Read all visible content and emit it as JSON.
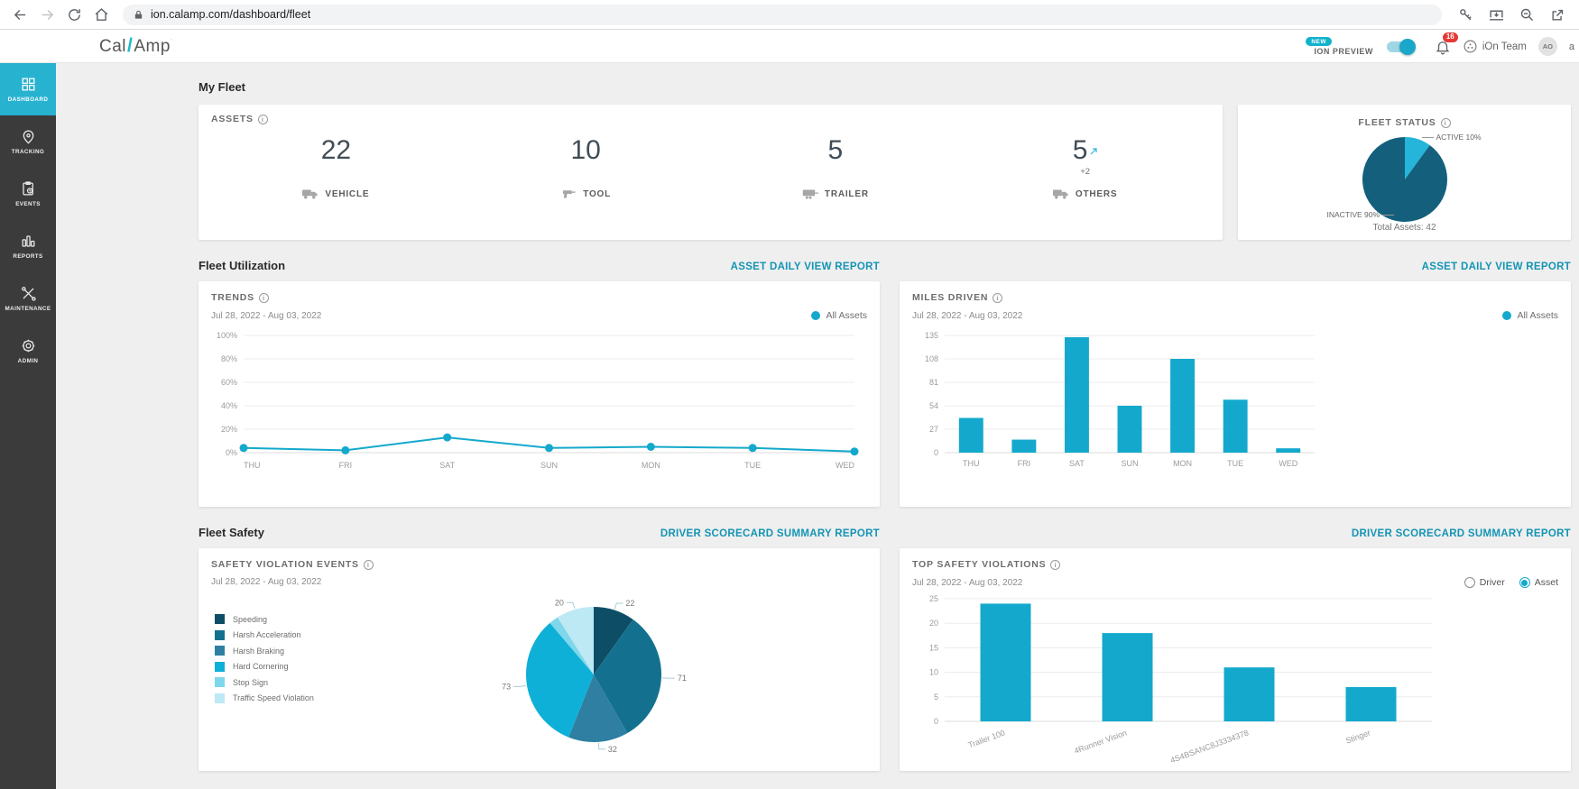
{
  "browser": {
    "url": "ion.calamp.com/dashboard/fleet"
  },
  "header": {
    "logo_left": "Cal",
    "logo_slash": "/",
    "logo_right": "Amp",
    "new_badge": "NEW",
    "preview_label": "ION PREVIEW",
    "preview_on": true,
    "notification_count": "16",
    "team_name": "iOn Team",
    "avatar_initials": "AO",
    "partial_text": "a"
  },
  "sidebar": {
    "items": [
      {
        "label": "DASHBOARD",
        "active": true
      },
      {
        "label": "TRACKING"
      },
      {
        "label": "EVENTS"
      },
      {
        "label": "REPORTS"
      },
      {
        "label": "MAINTENANCE"
      },
      {
        "label": "ADMIN"
      }
    ]
  },
  "sections": {
    "my_fleet": "My Fleet",
    "fleet_utilization": "Fleet Utilization",
    "fleet_safety": "Fleet Safety",
    "asset_daily_link": "ASSET DAILY VIEW REPORT",
    "driver_scorecard_link": "DRIVER SCORECARD SUMMARY REPORT"
  },
  "assets_card": {
    "title": "ASSETS",
    "items": [
      {
        "value": "22",
        "label": "VEHICLE"
      },
      {
        "value": "10",
        "label": "TOOL"
      },
      {
        "value": "5",
        "label": "TRAILER"
      },
      {
        "value": "5",
        "label": "OTHERS",
        "delta": "+2"
      }
    ]
  },
  "filters": {
    "driver": "Driver",
    "asset": "Asset",
    "selected": "Asset"
  },
  "colors": {
    "accent": "#14a9cc",
    "link": "#1494b4",
    "sidebar_active": "#27b2d0",
    "notification_badge": "#e53935",
    "active_slice": "#25b4da",
    "inactive_slice": "#14607c"
  },
  "chart_data": [
    {
      "id": "fleet-status-pie",
      "type": "pie",
      "title": "FLEET STATUS",
      "labels": [
        "ACTIVE 10%",
        "INACTIVE 90%"
      ],
      "values": [
        10,
        90
      ],
      "colors": [
        "#25b4da",
        "#14607c"
      ],
      "footer": "Total Assets: 42"
    },
    {
      "id": "trends-line",
      "type": "line",
      "title": "TRENDS",
      "subtitle": "Jul 28, 2022 - Aug 03, 2022",
      "legend": [
        "All Assets"
      ],
      "categories": [
        "THU",
        "FRI",
        "SAT",
        "SUN",
        "MON",
        "TUE",
        "WED"
      ],
      "values": [
        4,
        2,
        13,
        4,
        5,
        4,
        1
      ],
      "yticks": [
        0,
        20,
        40,
        60,
        80,
        100
      ],
      "ytick_suffix": "%",
      "ylim": [
        0,
        100
      ],
      "color": "#14a9cc",
      "grid": true,
      "legend_position": "top-right"
    },
    {
      "id": "miles-bar",
      "type": "bar",
      "title": "MILES DRIVEN",
      "subtitle": "Jul 28, 2022 - Aug 03, 2022",
      "legend": [
        "All Assets"
      ],
      "categories": [
        "THU",
        "FRI",
        "SAT",
        "SUN",
        "MON",
        "TUE",
        "WED"
      ],
      "values": [
        40,
        15,
        133,
        54,
        108,
        61,
        5
      ],
      "yticks": [
        0,
        27,
        54,
        81,
        108,
        135
      ],
      "ylim": [
        0,
        135
      ],
      "color": "#14a9cc",
      "grid": true,
      "legend_position": "top-right"
    },
    {
      "id": "safety-pie",
      "type": "pie",
      "title": "SAFETY VIOLATION EVENTS",
      "subtitle": "Jul 28, 2022 - Aug 03, 2022",
      "labels": [
        "Speeding",
        "Harsh Acceleration",
        "Harsh Braking",
        "Hard Cornering",
        "Stop Sign",
        "Traffic Speed Violation"
      ],
      "values": [
        22,
        71,
        32,
        73,
        5,
        20
      ],
      "value_labels": [
        "22",
        "71",
        "32",
        "73",
        "",
        "20"
      ],
      "colors": [
        "#0d4e66",
        "#13718f",
        "#2e7fa2",
        "#0fb0d7",
        "#7ed7ea",
        "#bce9f4"
      ],
      "legend_position": "left"
    },
    {
      "id": "topviol-bar",
      "type": "bar",
      "title": "TOP SAFETY VIOLATIONS",
      "subtitle": "Jul 28, 2022 - Aug 03, 2022",
      "categories": [
        "Trailer 100",
        "4Runner Vision",
        "4S4BSANC8J3334378",
        "Stinger"
      ],
      "values": [
        24,
        18,
        11,
        7
      ],
      "yticks": [
        0,
        5,
        10,
        15,
        20,
        25
      ],
      "ylim": [
        0,
        25
      ],
      "color": "#14a9cc",
      "grid": true,
      "xlabel_rotation": -20
    }
  ]
}
